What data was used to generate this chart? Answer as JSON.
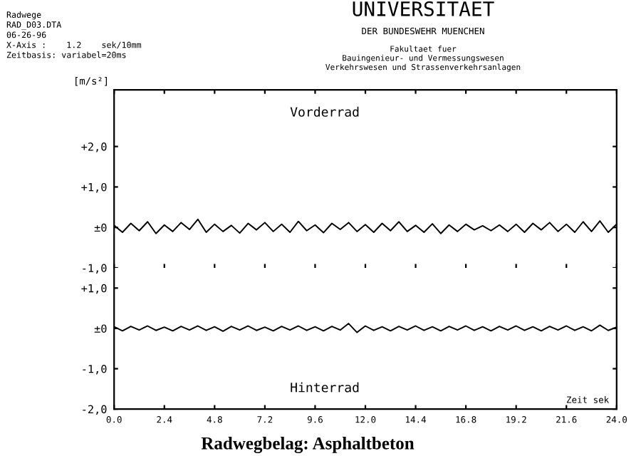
{
  "chart_data": [
    {
      "type": "line",
      "title": "UNIVERSITAET",
      "subtitle": "DER BUNDESWEHR MUENCHEN",
      "ylabel": "[m/s²]",
      "annotations": [
        "Radwege",
        "RAD_D03.DTA",
        "06-26-96",
        "X-Axis :    1.2    sek/10mm",
        "Zeitbasis: variabel=20ms",
        "Fakultaet fuer",
        "Bauingenieur- und Vermessungswesen",
        "Verkehrswesen und Strassenverkehrsanlagen"
      ],
      "x": [
        0,
        0.4,
        0.8,
        1.2,
        1.6,
        2,
        2.4,
        2.8,
        3.2,
        3.6,
        4,
        4.4,
        4.8,
        5.2,
        5.6,
        6,
        6.4,
        6.8,
        7.2,
        7.6,
        8,
        8.4,
        8.8,
        9.2,
        9.6,
        10,
        10.4,
        10.8,
        11.2,
        11.6,
        12,
        12.4,
        12.8,
        13.2,
        13.6,
        14,
        14.4,
        14.8,
        15.2,
        15.6,
        16,
        16.4,
        16.8,
        17.2,
        17.6,
        18,
        18.4,
        18.8,
        19.2,
        19.6,
        20,
        20.4,
        20.8,
        21.2,
        21.6,
        22,
        22.4,
        22.8,
        23.2,
        23.6,
        24
      ],
      "series": [
        {
          "name": "Vorderrad",
          "color": "#000000",
          "values": [
            0.05,
            -0.12,
            0.1,
            -0.08,
            0.14,
            -0.15,
            0.06,
            -0.1,
            0.12,
            -0.05,
            0.2,
            -0.12,
            0.08,
            -0.1,
            0.05,
            -0.14,
            0.1,
            -0.06,
            0.12,
            -0.1,
            0.08,
            -0.12,
            0.15,
            -0.08,
            0.06,
            -0.13,
            0.1,
            -0.05,
            0.12,
            -0.1,
            0.07,
            -0.12,
            0.1,
            -0.08,
            0.14,
            -0.1,
            0.05,
            -0.12,
            0.09,
            -0.15,
            0.06,
            -0.1,
            0.08,
            -0.06,
            0.04,
            -0.08,
            0.06,
            -0.1,
            0.08,
            -0.12,
            0.1,
            -0.06,
            0.12,
            -0.1,
            0.08,
            -0.12,
            0.14,
            -0.1,
            0.16,
            -0.12,
            0.08
          ]
        }
      ],
      "xlim": [
        0,
        24
      ],
      "xticks": [
        {
          "value": 0,
          "label": null
        },
        {
          "value": 2.4,
          "label": null
        },
        {
          "value": 4.8,
          "label": null
        },
        {
          "value": 7.2,
          "label": null
        },
        {
          "value": 9.6,
          "label": null
        },
        {
          "value": 12.0,
          "label": null
        },
        {
          "value": 14.4,
          "label": null
        },
        {
          "value": 16.8,
          "label": null
        },
        {
          "value": 19.2,
          "label": null
        },
        {
          "value": 21.6,
          "label": null
        },
        {
          "value": 24.0,
          "label": null
        }
      ],
      "ylim": [
        -1.0,
        3.4
      ],
      "yticks": [
        {
          "value": -1,
          "label": "-1,0"
        },
        {
          "value": 0,
          "label": "±0"
        },
        {
          "value": 1,
          "label": "+1,0"
        },
        {
          "value": 2,
          "label": "+2,0"
        }
      ],
      "tick_labels": "y",
      "grid": false,
      "legend": "top"
    },
    {
      "type": "line",
      "xlabel": "Zeit sek",
      "annotations": [
        "Radwegbelag: Asphaltbeton"
      ],
      "x": [
        0,
        0.4,
        0.8,
        1.2,
        1.6,
        2,
        2.4,
        2.8,
        3.2,
        3.6,
        4,
        4.4,
        4.8,
        5.2,
        5.6,
        6,
        6.4,
        6.8,
        7.2,
        7.6,
        8,
        8.4,
        8.8,
        9.2,
        9.6,
        10,
        10.4,
        10.8,
        11.2,
        11.6,
        12,
        12.4,
        12.8,
        13.2,
        13.6,
        14,
        14.4,
        14.8,
        15.2,
        15.6,
        16,
        16.4,
        16.8,
        17.2,
        17.6,
        18,
        18.4,
        18.8,
        19.2,
        19.6,
        20,
        20.4,
        20.8,
        21.2,
        21.6,
        22,
        22.4,
        22.8,
        23.2,
        23.6,
        24
      ],
      "series": [
        {
          "name": "Hinterrad",
          "color": "#000000",
          "values": [
            0.04,
            -0.06,
            0.05,
            -0.04,
            0.06,
            -0.05,
            0.03,
            -0.06,
            0.05,
            -0.04,
            0.06,
            -0.05,
            0.04,
            -0.07,
            0.05,
            -0.04,
            0.06,
            -0.05,
            0.03,
            -0.06,
            0.05,
            -0.04,
            0.06,
            -0.05,
            0.04,
            -0.06,
            0.05,
            -0.04,
            0.12,
            -0.1,
            0.06,
            -0.05,
            0.04,
            -0.06,
            0.05,
            -0.04,
            0.06,
            -0.05,
            0.04,
            -0.06,
            0.05,
            -0.04,
            0.06,
            -0.05,
            0.04,
            -0.06,
            0.05,
            -0.04,
            0.06,
            -0.05,
            0.04,
            -0.06,
            0.05,
            -0.04,
            0.06,
            -0.05,
            0.04,
            -0.06,
            0.08,
            -0.05,
            0.03
          ]
        }
      ],
      "xlim": [
        0,
        24
      ],
      "xticks": [
        {
          "value": 0,
          "label": "0.0"
        },
        2.4,
        4.8,
        7.2,
        9.6,
        {
          "value": 12.0,
          "label": "12.0"
        },
        14.4,
        16.8,
        19.2,
        21.6,
        {
          "value": 24.0,
          "label": "24.0"
        }
      ],
      "ylim": [
        -2.0,
        1.5
      ],
      "yticks": [
        {
          "value": -2,
          "label": "-2,0"
        },
        {
          "value": -1,
          "label": "-1,0"
        },
        {
          "value": 0,
          "label": "±0"
        },
        {
          "value": 1,
          "label": "+1,0"
        }
      ],
      "grid": false,
      "legend": "bottom"
    }
  ]
}
